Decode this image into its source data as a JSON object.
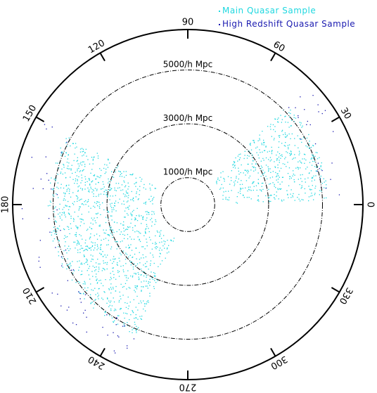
{
  "legend": {
    "main": "Main Quasar Sample",
    "high": "High Redshift Quasar Sample"
  },
  "colors": {
    "main": "#20d8e0",
    "high": "#1a1ab0",
    "axes": "#000000"
  },
  "chart_data": {
    "type": "scatter",
    "coordinate_system": "polar",
    "radial_unit": "h^-1 Mpc",
    "max_radius": 6500,
    "angle_ticks": [
      0,
      30,
      60,
      90,
      120,
      150,
      180,
      210,
      240,
      270,
      300,
      330
    ],
    "angle_tick_labels": [
      "0",
      "30",
      "60",
      "90",
      "120",
      "150",
      "180",
      "210",
      "240",
      "270",
      "300",
      "330"
    ],
    "distance_rings": [
      {
        "distance": 1000,
        "label": "1000/h Mpc"
      },
      {
        "distance": 3000,
        "label": "3000/h Mpc"
      },
      {
        "distance": 5000,
        "label": "5000/h Mpc"
      }
    ],
    "series": [
      {
        "name": "Main Quasar Sample",
        "color": "#20d8e0",
        "point_count": 1700,
        "regions": [
          {
            "ra_min": 2,
            "ra_max": 45,
            "dist_min": 1300,
            "dist_max": 5200
          },
          {
            "ra_min": 150,
            "ra_max": 248,
            "dist_min": 1300,
            "dist_max": 5200
          }
        ]
      },
      {
        "name": "High Redshift Quasar Sample",
        "color": "#1a1ab0",
        "point_count": 90,
        "regions": [
          {
            "ra_min": 2,
            "ra_max": 45,
            "dist_min": 4800,
            "dist_max": 6200
          },
          {
            "ra_min": 150,
            "ra_max": 248,
            "dist_min": 4800,
            "dist_max": 6200
          }
        ]
      }
    ]
  }
}
